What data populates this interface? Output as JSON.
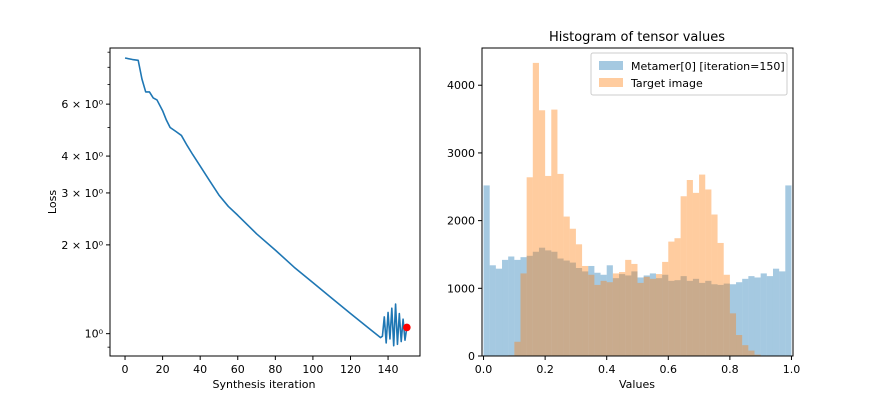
{
  "chart_data": [
    {
      "type": "line",
      "title": "",
      "xlabel": "Synthesis iteration",
      "ylabel": "Loss",
      "xlim": [
        -8,
        157
      ],
      "ylim": [
        0.84,
        9.3
      ],
      "yscale": "log",
      "grid": false,
      "xticks": [
        0,
        20,
        40,
        60,
        80,
        100,
        120,
        140
      ],
      "xtick_labels": [
        "0",
        "20",
        "40",
        "60",
        "80",
        "100",
        "120",
        "140"
      ],
      "yticks_major": [
        1,
        2,
        3,
        4,
        6
      ],
      "ytick_labels": [
        "10⁰",
        "2 × 10⁰",
        "3 × 10⁰",
        "4 × 10⁰",
        "6 × 10⁰"
      ],
      "series": [
        {
          "color": "#1f77b4",
          "x": [
            0,
            4,
            7,
            9,
            11,
            13,
            15,
            17,
            20,
            22,
            24,
            27,
            30,
            33,
            36,
            40,
            45,
            50,
            55,
            60,
            70,
            80,
            90,
            100,
            110,
            120,
            130,
            136,
            137,
            138,
            139,
            140,
            141,
            142,
            143,
            144,
            145,
            146,
            147,
            148,
            149,
            150
          ],
          "y": [
            8.6,
            8.5,
            8.45,
            7.3,
            6.6,
            6.6,
            6.3,
            6.2,
            5.7,
            5.3,
            5.0,
            4.85,
            4.7,
            4.35,
            4.05,
            3.7,
            3.3,
            2.95,
            2.7,
            2.52,
            2.18,
            1.92,
            1.68,
            1.49,
            1.32,
            1.17,
            1.04,
            0.97,
            0.98,
            1.14,
            0.93,
            1.18,
            0.96,
            1.22,
            0.91,
            1.26,
            0.92,
            1.17,
            0.94,
            1.12,
            0.95,
            1.05
          ]
        }
      ],
      "marker": {
        "x": 150,
        "y": 1.05,
        "color": "#ff0000"
      }
    },
    {
      "type": "bar",
      "title": "Histogram of tensor values",
      "xlabel": "Values",
      "ylabel": "",
      "xlim": [
        -0.005,
        1.005
      ],
      "ylim": [
        0,
        4550
      ],
      "grid": false,
      "legend_position": "top-right",
      "xticks": [
        0.0,
        0.2,
        0.4,
        0.6,
        0.8,
        1.0
      ],
      "xtick_labels": [
        "0.0",
        "0.2",
        "0.4",
        "0.6",
        "0.8",
        "1.0"
      ],
      "yticks": [
        0,
        1000,
        2000,
        3000,
        4000
      ],
      "ytick_labels": [
        "0",
        "1000",
        "2000",
        "3000",
        "4000"
      ],
      "bin_edges": [
        0.0,
        0.02,
        0.04,
        0.06,
        0.08,
        0.1,
        0.12,
        0.14,
        0.16,
        0.18,
        0.2,
        0.22,
        0.24,
        0.26,
        0.28,
        0.3,
        0.32,
        0.34,
        0.36,
        0.38,
        0.4,
        0.42,
        0.44,
        0.46,
        0.48,
        0.5,
        0.52,
        0.54,
        0.56,
        0.58,
        0.6,
        0.62,
        0.64,
        0.66,
        0.68,
        0.7,
        0.72,
        0.74,
        0.76,
        0.78,
        0.8,
        0.82,
        0.84,
        0.86,
        0.88,
        0.9,
        0.92,
        0.94,
        0.96,
        0.98,
        1.0
      ],
      "series": [
        {
          "name": "Metamer[0] [iteration=150]",
          "color": "#1f77b4",
          "alpha": 0.4,
          "values": [
            2520,
            1340,
            1290,
            1420,
            1470,
            1420,
            1460,
            1480,
            1540,
            1600,
            1560,
            1540,
            1440,
            1410,
            1380,
            1300,
            1250,
            1330,
            1230,
            1200,
            1340,
            1150,
            1210,
            1190,
            1250,
            1160,
            1190,
            1220,
            1150,
            1200,
            1110,
            1120,
            1180,
            1110,
            1140,
            1080,
            1110,
            1060,
            1050,
            1070,
            1060,
            1090,
            1140,
            1180,
            1160,
            1220,
            1180,
            1290,
            1250,
            2520
          ]
        },
        {
          "name": "Target image",
          "color": "#ff7f0e",
          "alpha": 0.4,
          "values": [
            0,
            0,
            0,
            0,
            10,
            210,
            1220,
            2640,
            4330,
            3630,
            2660,
            3640,
            2690,
            2060,
            1880,
            1650,
            1330,
            1200,
            1050,
            1110,
            1090,
            1220,
            1240,
            1420,
            1360,
            1080,
            1170,
            1140,
            1210,
            1390,
            1690,
            1740,
            2360,
            2600,
            2410,
            2680,
            2460,
            2090,
            1670,
            1200,
            630,
            310,
            160,
            80,
            20,
            0,
            0,
            0,
            0,
            0
          ]
        }
      ]
    }
  ]
}
